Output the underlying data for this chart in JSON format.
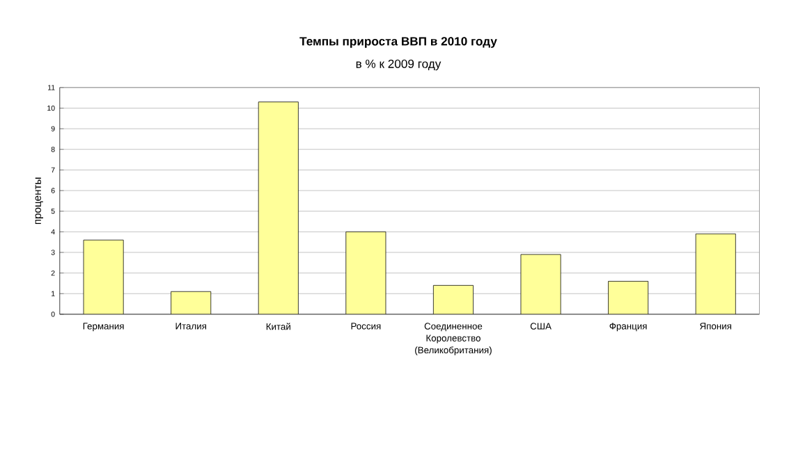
{
  "chart_data": {
    "type": "bar",
    "title": "Темпы прироста ВВП в 2010 году",
    "subtitle": "в % к 2009 году",
    "ylabel": "проценты",
    "categories": [
      "Германия",
      "Италия",
      "Китай",
      "Россия",
      "Соединенное Королевство (Великобритания)",
      "США",
      "Франция",
      "Япония"
    ],
    "values": [
      3.6,
      1.1,
      10.3,
      4.0,
      1.4,
      2.9,
      1.6,
      3.9
    ],
    "color": "#ffff99",
    "ylim": [
      0,
      11
    ],
    "yticks": [
      0,
      1,
      2,
      3,
      4,
      5,
      6,
      7,
      8,
      9,
      10,
      11
    ],
    "grid": "y"
  }
}
